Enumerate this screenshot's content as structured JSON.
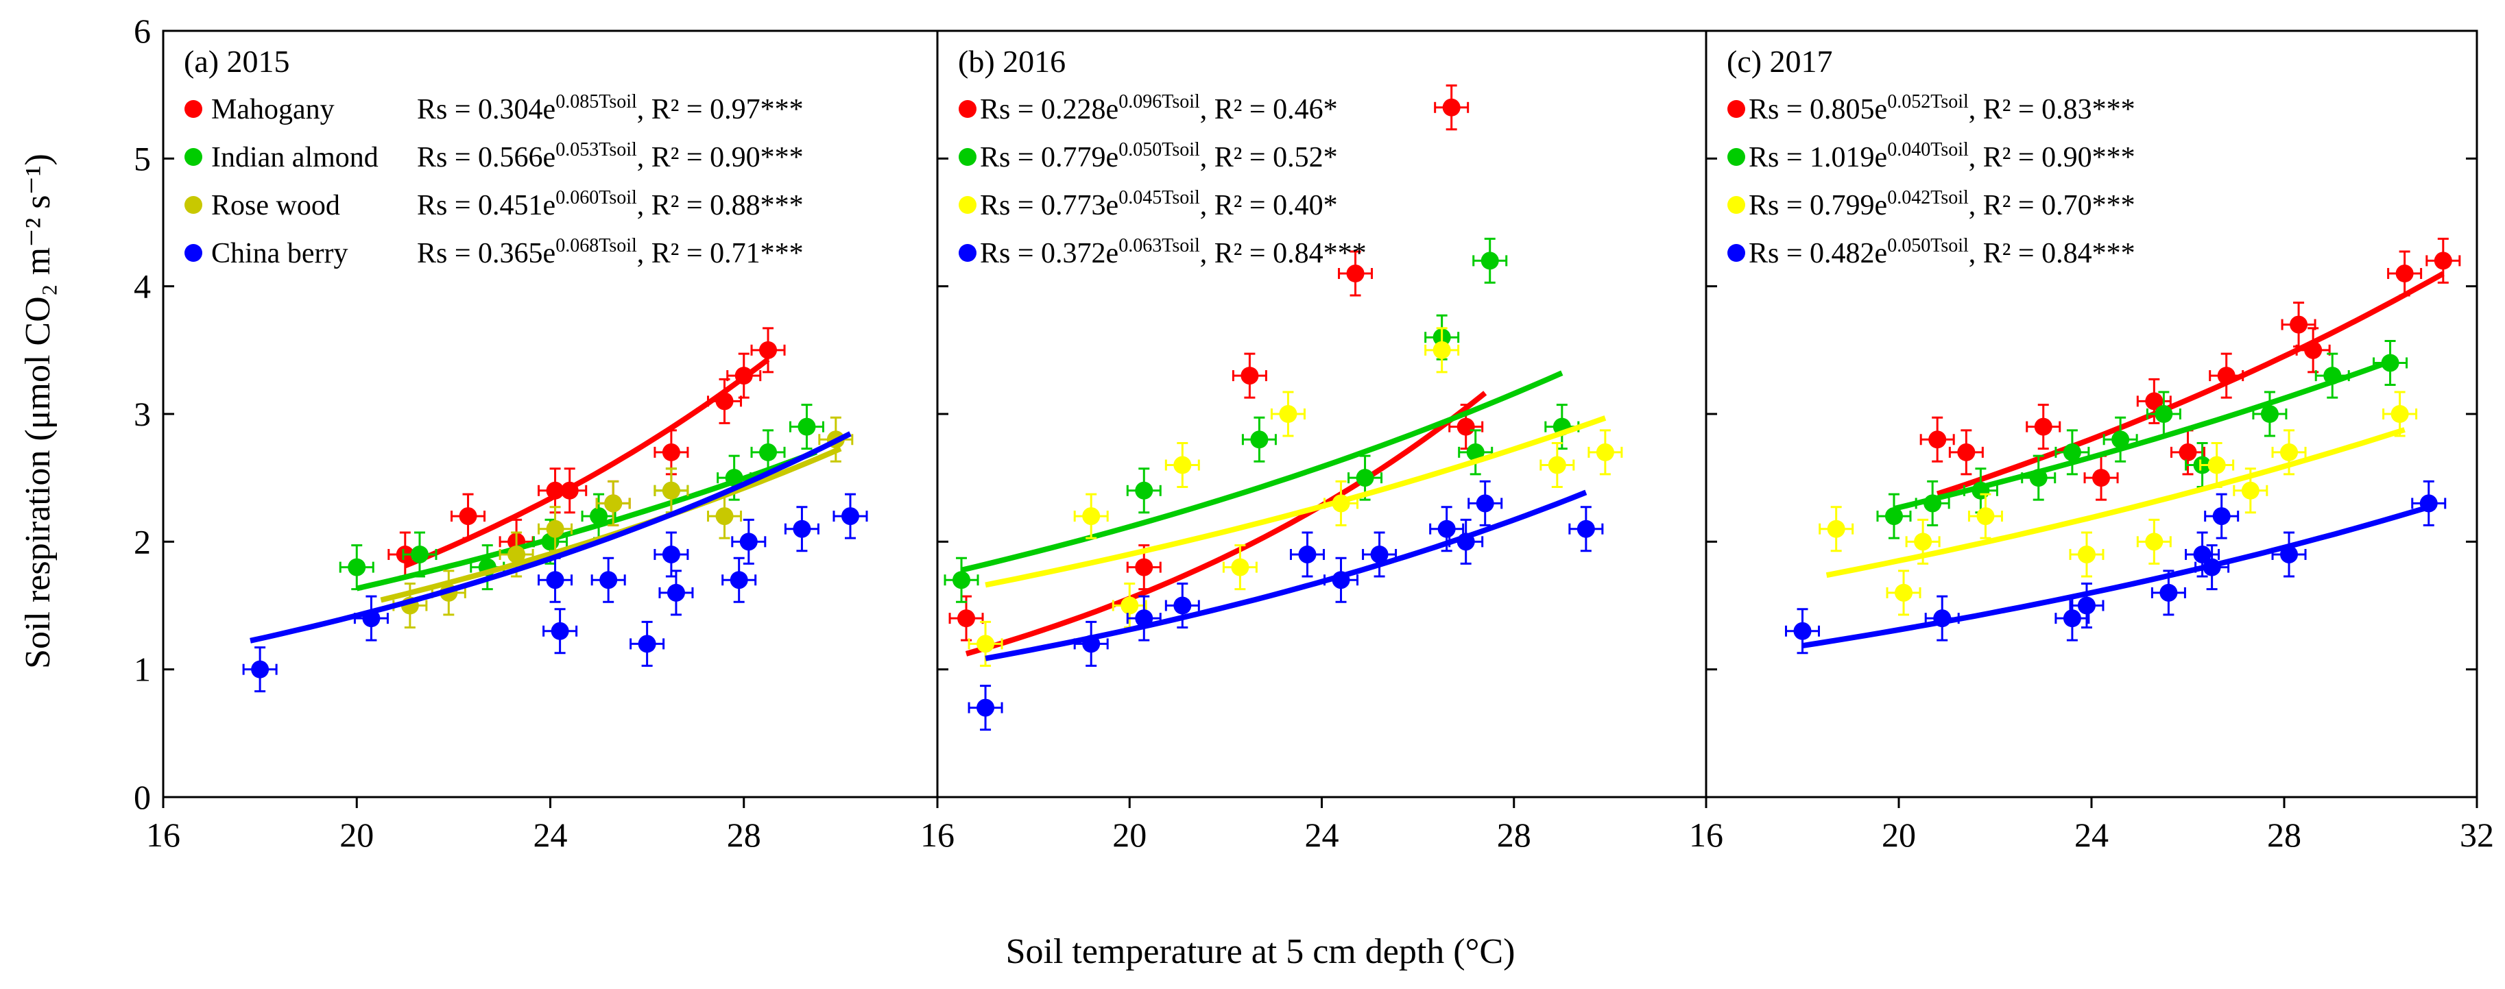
{
  "figure": {
    "ylabel": "Soil respiration (μmol CO₂ m⁻² s⁻¹)",
    "xlabel": "Soil temperature at 5 cm depth (°C)"
  },
  "chart_data": [
    {
      "type": "scatter",
      "title": "(a) 2015",
      "xlim": [
        16,
        32
      ],
      "ylim": [
        0,
        6
      ],
      "xticks": [
        16,
        20,
        24,
        28
      ],
      "yticks": [
        0,
        1,
        2,
        3,
        4,
        5,
        6
      ],
      "fit": "exponential",
      "series": [
        {
          "name": "Mahogany",
          "color": "#ff0000",
          "equation": "Rs = 0.304e",
          "exponent": "0.085Tsoil",
          "r2": ", R² = 0.97***",
          "x": [
            21,
            22.3,
            23.3,
            24.1,
            24.4,
            25.3,
            26.5,
            27.6,
            28,
            28.5
          ],
          "y": [
            1.9,
            2.2,
            2.0,
            2.4,
            2.4,
            2.3,
            2.7,
            3.1,
            3.3,
            3.5
          ],
          "fit_a": 0.304,
          "fit_b": 0.085,
          "fit_range": [
            21,
            28.5
          ]
        },
        {
          "name": "Indian almond",
          "color": "#00cc00",
          "equation": "Rs = 0.566e",
          "exponent": "0.053Tsoil",
          "r2": ", R² = 0.90***",
          "x": [
            20,
            21.3,
            22.7,
            24,
            25,
            26.5,
            27.8,
            28.5,
            29.3
          ],
          "y": [
            1.8,
            1.9,
            1.8,
            2.0,
            2.2,
            2.4,
            2.5,
            2.7,
            2.9
          ],
          "fit_a": 0.566,
          "fit_b": 0.053,
          "fit_range": [
            20,
            29.5
          ]
        },
        {
          "name": "Rose wood",
          "color": "#c8c800",
          "equation": "Rs = 0.451e",
          "exponent": "0.060Tsoil",
          "r2": ", R² = 0.88***",
          "x": [
            21.1,
            21.9,
            23.3,
            24.1,
            25.3,
            26.5,
            27.6,
            29.9
          ],
          "y": [
            1.5,
            1.6,
            1.9,
            2.1,
            2.3,
            2.4,
            2.2,
            2.8
          ],
          "fit_a": 0.451,
          "fit_b": 0.06,
          "fit_range": [
            20.5,
            30
          ]
        },
        {
          "name": "China berry",
          "color": "#0000ff",
          "equation": "Rs = 0.365e",
          "exponent": "0.068Tsoil",
          "r2": ", R² = 0.71***",
          "x": [
            18,
            20.3,
            24.1,
            24.2,
            25.2,
            26,
            26.5,
            26.6,
            27.9,
            28.1,
            29.2,
            30.2
          ],
          "y": [
            1.0,
            1.4,
            1.7,
            1.3,
            1.7,
            1.2,
            1.9,
            1.6,
            1.7,
            2.0,
            2.1,
            2.2
          ],
          "fit_a": 0.365,
          "fit_b": 0.068,
          "fit_range": [
            17.8,
            30.2
          ]
        }
      ]
    },
    {
      "type": "scatter",
      "title": "(b) 2016",
      "xlim": [
        16,
        32
      ],
      "ylim": [
        0,
        6
      ],
      "xticks": [
        16,
        20,
        24,
        28
      ],
      "fit": "exponential",
      "series": [
        {
          "name": "",
          "color": "#ff0000",
          "equation": "Rs = 0.228e",
          "exponent": "0.096Tsoil",
          "r2": ", R² = 0.46*",
          "x": [
            16.6,
            20.3,
            22.5,
            24.7,
            26.7,
            27
          ],
          "y": [
            1.4,
            1.8,
            3.3,
            4.1,
            5.4,
            2.9
          ],
          "fit_a": 0.228,
          "fit_b": 0.096,
          "fit_range": [
            16.6,
            27.4
          ]
        },
        {
          "name": "",
          "color": "#00cc00",
          "equation": "Rs = 0.779e",
          "exponent": "0.050Tsoil",
          "r2": ", R² = 0.52*",
          "x": [
            16.5,
            20.3,
            22.7,
            24.9,
            26.5,
            27.2,
            27.5,
            29
          ],
          "y": [
            1.7,
            2.4,
            2.8,
            2.5,
            3.6,
            2.7,
            4.2,
            2.9
          ],
          "fit_a": 0.779,
          "fit_b": 0.05,
          "fit_range": [
            16.5,
            29
          ]
        },
        {
          "name": "",
          "color": "#ffff00",
          "equation": "Rs = 0.773e",
          "exponent": "0.045Tsoil",
          "r2": ", R² = 0.40*",
          "x": [
            17,
            19.2,
            20,
            21.1,
            22.3,
            23.3,
            24.4,
            26.5,
            28.9,
            29.9
          ],
          "y": [
            1.2,
            2.2,
            1.5,
            2.6,
            1.8,
            3.0,
            2.3,
            3.5,
            2.6,
            2.7
          ],
          "fit_a": 0.773,
          "fit_b": 0.045,
          "fit_range": [
            17,
            29.9
          ]
        },
        {
          "name": "",
          "color": "#0000ff",
          "equation": "Rs = 0.372e",
          "exponent": "0.063Tsoil",
          "r2": ", R² = 0.84***",
          "x": [
            17,
            19.2,
            20.3,
            21.1,
            23.7,
            24.4,
            25.2,
            26.6,
            27,
            27.4,
            29.5
          ],
          "y": [
            0.7,
            1.2,
            1.4,
            1.5,
            1.9,
            1.7,
            1.9,
            2.1,
            2.0,
            2.3,
            2.1
          ],
          "fit_a": 0.372,
          "fit_b": 0.063,
          "fit_range": [
            17,
            29.5
          ]
        }
      ]
    },
    {
      "type": "scatter",
      "title": "(c) 2017",
      "xlim": [
        16,
        32
      ],
      "ylim": [
        0,
        6
      ],
      "xticks": [
        16,
        20,
        24,
        28,
        32
      ],
      "fit": "exponential",
      "series": [
        {
          "name": "",
          "color": "#ff0000",
          "equation": "Rs = 0.805e",
          "exponent": "0.052Tsoil",
          "r2": ", R² = 0.83***",
          "x": [
            20.8,
            21.4,
            23,
            24.2,
            25.3,
            26,
            26.8,
            28.3,
            28.6,
            30.5,
            31.3
          ],
          "y": [
            2.8,
            2.7,
            2.9,
            2.5,
            3.1,
            2.7,
            3.3,
            3.7,
            3.5,
            4.1,
            4.2
          ],
          "fit_a": 0.805,
          "fit_b": 0.052,
          "fit_range": [
            20.8,
            31.3
          ]
        },
        {
          "name": "",
          "color": "#00cc00",
          "equation": "Rs = 1.019e",
          "exponent": "0.040Tsoil",
          "r2": ", R² = 0.90***",
          "x": [
            19.9,
            20.7,
            21.7,
            22.9,
            23.6,
            24.6,
            25.5,
            26.3,
            27.7,
            29,
            30.2
          ],
          "y": [
            2.2,
            2.3,
            2.4,
            2.5,
            2.7,
            2.8,
            3.0,
            2.6,
            3.0,
            3.3,
            3.4
          ],
          "fit_a": 1.019,
          "fit_b": 0.04,
          "fit_range": [
            19.9,
            30.2
          ]
        },
        {
          "name": "",
          "color": "#ffff00",
          "equation": "Rs = 0.799e",
          "exponent": "0.042Tsoil",
          "r2": ", R² = 0.70***",
          "x": [
            18.7,
            20.1,
            20.5,
            21.8,
            23.9,
            25.3,
            26.6,
            27.3,
            28.1,
            30.4
          ],
          "y": [
            2.1,
            1.6,
            2.0,
            2.2,
            1.9,
            2.0,
            2.6,
            2.4,
            2.7,
            3.0
          ],
          "fit_a": 0.799,
          "fit_b": 0.042,
          "fit_range": [
            18.5,
            30.5
          ]
        },
        {
          "name": "",
          "color": "#0000ff",
          "equation": "Rs = 0.482e",
          "exponent": "0.050Tsoil",
          "r2": ", R² = 0.84***",
          "x": [
            18,
            20.9,
            23.6,
            23.9,
            25.6,
            26.3,
            26.5,
            26.7,
            28.1,
            31
          ],
          "y": [
            1.3,
            1.4,
            1.4,
            1.5,
            1.6,
            1.9,
            1.8,
            2.2,
            1.9,
            2.3
          ],
          "fit_a": 0.482,
          "fit_b": 0.05,
          "fit_range": [
            18,
            31
          ]
        }
      ]
    }
  ]
}
